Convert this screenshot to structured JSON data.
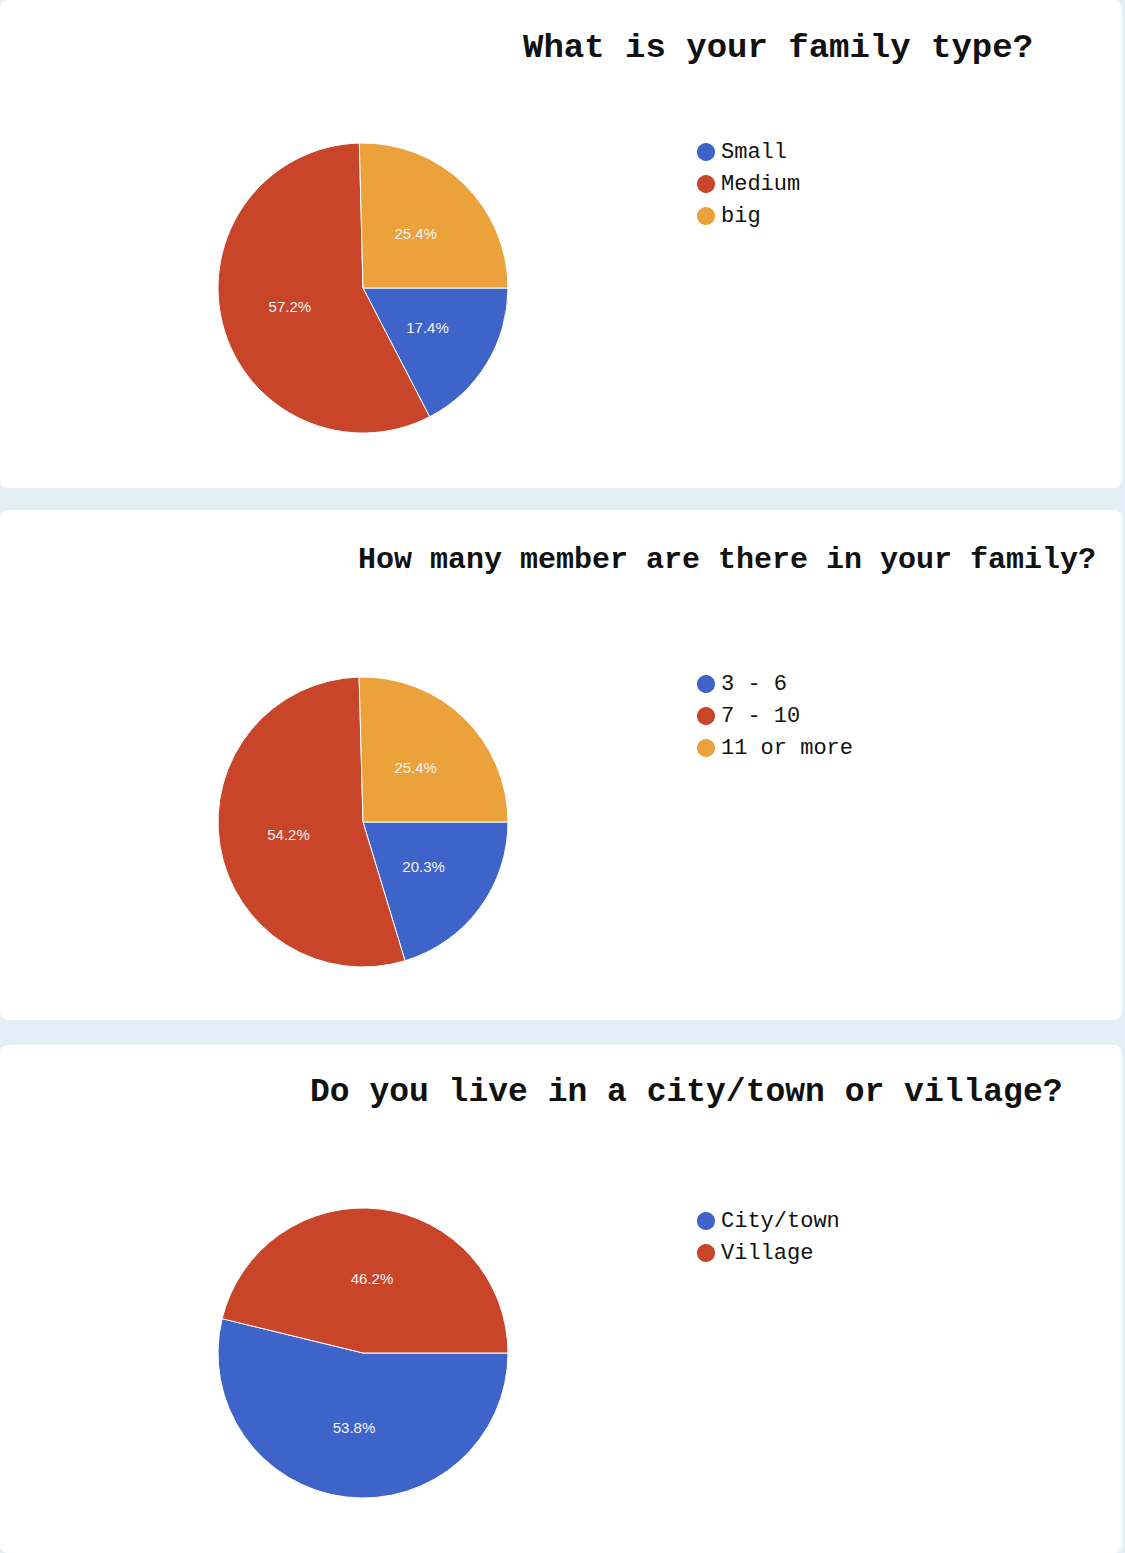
{
  "chart_data": [
    {
      "type": "pie",
      "title": "What is your family type?",
      "categories": [
        "Small",
        "Medium",
        "big"
      ],
      "values": [
        17.4,
        57.2,
        25.4
      ],
      "value_labels": [
        "17.4%",
        "57.2%",
        "25.4%"
      ],
      "colors": [
        "#3f64c9",
        "#c8452a",
        "#eca23b"
      ],
      "data_labels": true,
      "legend": "right"
    },
    {
      "type": "pie",
      "title": "How many member are there in your family?",
      "categories": [
        "3 - 6",
        "7 - 10",
        "11 or more"
      ],
      "values": [
        20.3,
        54.2,
        25.4
      ],
      "value_labels": [
        "20.3%",
        "54.2%",
        "25.4%"
      ],
      "colors": [
        "#3f64c9",
        "#c8452a",
        "#eca23b"
      ],
      "data_labels": true,
      "legend": "right"
    },
    {
      "type": "pie",
      "title": "Do you live in a city/town or village?",
      "categories": [
        "City/town",
        "Village"
      ],
      "values": [
        53.8,
        46.2
      ],
      "value_labels": [
        "53.8%",
        "46.2%"
      ],
      "colors": [
        "#3f64c9",
        "#c8452a"
      ],
      "data_labels": true,
      "legend": "right"
    }
  ]
}
